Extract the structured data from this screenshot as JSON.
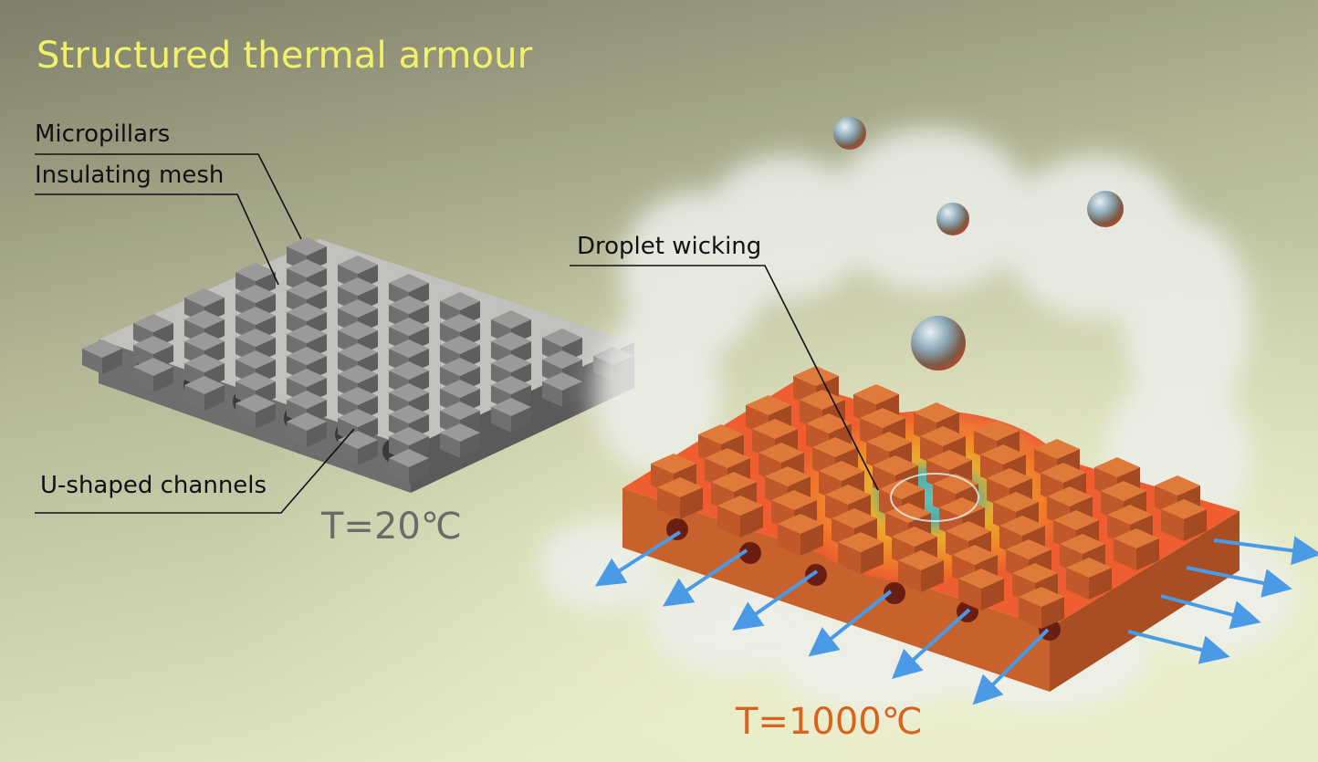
{
  "title": "Structured thermal armour",
  "labels": {
    "micropillars": "Micropillars",
    "insulating_mesh": "Insulating mesh",
    "u_shaped_channels": "U-shaped channels",
    "droplet_wicking": "Droplet wicking"
  },
  "temperatures": {
    "cold": "T=20℃",
    "hot": "T=1000℃"
  },
  "colors": {
    "title": "#f2f26a",
    "cold_temp": "#6a6a66",
    "hot_temp": "#d9621e",
    "cold_pillar": "#8c8c8c",
    "hot_pillar": "#d8702e",
    "arrow": "#4a9ae6"
  },
  "icons": {
    "droplet": "droplet-icon",
    "steam": "steam-cloud",
    "arrow": "vapor-arrow-icon"
  }
}
